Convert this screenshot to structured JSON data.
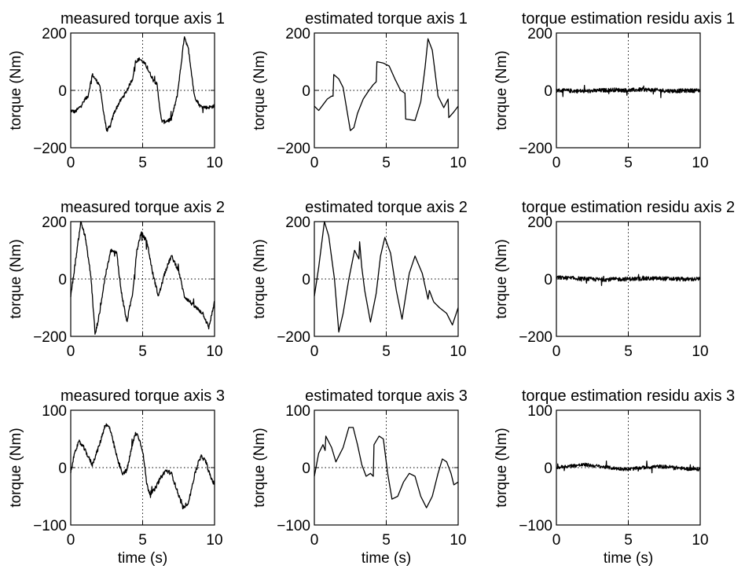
{
  "figure": {
    "background": "#ffffff",
    "line_color": "#000000"
  },
  "chart_data": [
    {
      "type": "line",
      "title": "measured torque axis 1",
      "xlabel": "",
      "ylabel": "torque (Nm)",
      "xlim": [
        0,
        10
      ],
      "ylim": [
        -200,
        200
      ],
      "xticks": [
        "0",
        "5",
        "10"
      ],
      "yticks": [
        "200",
        "0",
        "−200"
      ],
      "grid": "dotted at x=5 and y=0",
      "noise": 6,
      "series": [
        {
          "x": [
            0,
            0.3,
            0.6,
            0.9,
            1.2,
            1.5,
            1.7,
            2.0,
            2.3,
            2.5,
            2.75,
            3.0,
            3.4,
            3.8,
            4.1,
            4.3,
            4.5,
            4.8,
            5.2,
            5.6,
            6.0,
            6.3,
            6.5,
            7.0,
            7.4,
            7.7,
            7.9,
            8.2,
            8.6,
            9.0,
            9.5,
            10
          ],
          "y": [
            -70,
            -75,
            -60,
            -40,
            -20,
            55,
            40,
            20,
            -80,
            -140,
            -125,
            -80,
            -40,
            -10,
            20,
            40,
            100,
            110,
            90,
            50,
            20,
            -105,
            -110,
            -100,
            -20,
            100,
            190,
            140,
            -20,
            -55,
            -60,
            -55
          ]
        }
      ]
    },
    {
      "type": "line",
      "title": "estimated torque axis 1",
      "xlabel": "",
      "ylabel": "torque (Nm)",
      "xlim": [
        0,
        10
      ],
      "ylim": [
        -200,
        200
      ],
      "xticks": [
        "0",
        "5",
        "10"
      ],
      "yticks": [
        "200",
        "0",
        "−200"
      ],
      "grid": "dotted at x=5 and y=0",
      "noise": 0,
      "series": [
        {
          "x": [
            0,
            0.3,
            0.6,
            0.9,
            1.2,
            1.3,
            1.35,
            1.7,
            2.0,
            2.3,
            2.5,
            2.75,
            3.0,
            3.4,
            3.8,
            4.1,
            4.3,
            4.35,
            4.8,
            5.2,
            5.6,
            6.0,
            6.3,
            6.35,
            7.0,
            7.4,
            7.7,
            7.9,
            8.2,
            8.6,
            9.0,
            9.3,
            9.35,
            9.7,
            10
          ],
          "y": [
            -55,
            -70,
            -50,
            -30,
            -20,
            -20,
            55,
            40,
            10,
            -80,
            -140,
            -130,
            -80,
            -30,
            0,
            20,
            30,
            100,
            95,
            85,
            40,
            0,
            -10,
            -100,
            -105,
            -40,
            80,
            180,
            140,
            -20,
            -60,
            -30,
            -95,
            -75,
            -55
          ]
        }
      ]
    },
    {
      "type": "line",
      "title": "torque estimation residu axis 1",
      "xlabel": "",
      "ylabel": "torque (Nm)",
      "xlim": [
        0,
        10
      ],
      "ylim": [
        -200,
        200
      ],
      "xticks": [
        "0",
        "5",
        "10"
      ],
      "yticks": [
        "200",
        "0",
        "−200"
      ],
      "grid": "dotted at x=5 and y=0",
      "noise": 7,
      "series": [
        {
          "x": [
            0,
            2,
            4,
            5,
            6,
            8,
            10
          ],
          "y": [
            0,
            -3,
            2,
            0,
            3,
            -2,
            0
          ]
        }
      ]
    },
    {
      "type": "line",
      "title": "measured torque axis 2",
      "xlabel": "",
      "ylabel": "torque (Nm)",
      "xlim": [
        0,
        10
      ],
      "ylim": [
        -200,
        200
      ],
      "xticks": [
        "0",
        "5",
        "10"
      ],
      "yticks": [
        "200",
        "0",
        "−200"
      ],
      "grid": "dotted at x=5 and y=0",
      "noise": 7,
      "series": [
        {
          "x": [
            0,
            0.3,
            0.7,
            1.0,
            1.4,
            1.7,
            2.0,
            2.4,
            2.8,
            3.2,
            3.5,
            3.9,
            4.3,
            4.6,
            4.9,
            5.3,
            5.7,
            6.1,
            6.6,
            7.0,
            7.5,
            7.9,
            8.3,
            8.7,
            9.2,
            9.6,
            10
          ],
          "y": [
            -60,
            50,
            200,
            150,
            10,
            -195,
            -120,
            10,
            100,
            90,
            -40,
            -150,
            -50,
            100,
            160,
            130,
            20,
            -60,
            30,
            80,
            30,
            -60,
            -80,
            -100,
            -120,
            -170,
            -80
          ]
        }
      ]
    },
    {
      "type": "line",
      "title": "estimated torque axis 2",
      "xlabel": "",
      "ylabel": "torque (Nm)",
      "xlim": [
        0,
        10
      ],
      "ylim": [
        -200,
        200
      ],
      "xticks": [
        "0",
        "5",
        "10"
      ],
      "yticks": [
        "200",
        "0",
        "−200"
      ],
      "grid": "dotted at x=5 and y=0",
      "noise": 0,
      "series": [
        {
          "x": [
            0,
            0.3,
            0.7,
            1.0,
            1.4,
            1.7,
            2.0,
            2.4,
            2.8,
            3.1,
            3.15,
            3.3,
            3.5,
            3.9,
            4.3,
            4.6,
            4.9,
            5.3,
            5.7,
            6.1,
            6.6,
            7.0,
            7.5,
            7.9,
            8.0,
            8.3,
            8.7,
            9.2,
            9.6,
            10
          ],
          "y": [
            -60,
            40,
            200,
            150,
            0,
            -185,
            -120,
            0,
            100,
            70,
            130,
            40,
            -40,
            -150,
            -50,
            80,
            145,
            90,
            -40,
            -140,
            20,
            80,
            20,
            -70,
            -40,
            -80,
            -100,
            -120,
            -160,
            -100
          ]
        }
      ]
    },
    {
      "type": "line",
      "title": "torque estimation residu axis 2",
      "xlabel": "",
      "ylabel": "torque (Nm)",
      "xlim": [
        0,
        10
      ],
      "ylim": [
        -200,
        200
      ],
      "xticks": [
        "0",
        "5",
        "10"
      ],
      "yticks": [
        "200",
        "0",
        "−200"
      ],
      "grid": "dotted at x=5 and y=0",
      "noise": 7,
      "series": [
        {
          "x": [
            0,
            1,
            3,
            5,
            7,
            9,
            10
          ],
          "y": [
            5,
            3,
            -2,
            0,
            2,
            -1,
            0
          ]
        }
      ]
    },
    {
      "type": "line",
      "title": "measured torque axis 3",
      "xlabel": "time (s)",
      "ylabel": "torque (Nm)",
      "xlim": [
        0,
        10
      ],
      "ylim": [
        -100,
        100
      ],
      "xticks": [
        "0",
        "5",
        "10"
      ],
      "yticks": [
        "100",
        "0",
        "−100"
      ],
      "grid": "dotted at x=5 and y=0",
      "noise": 3.5,
      "series": [
        {
          "x": [
            0,
            0.3,
            0.6,
            0.9,
            1.2,
            1.5,
            2.0,
            2.4,
            2.7,
            3.0,
            3.3,
            3.6,
            3.9,
            4.2,
            4.5,
            4.7,
            5.0,
            5.3,
            5.5,
            5.8,
            6.2,
            6.6,
            7.0,
            7.4,
            7.8,
            8.2,
            8.5,
            8.8,
            9.1,
            9.4,
            9.7,
            10
          ],
          "y": [
            -10,
            30,
            45,
            35,
            20,
            5,
            40,
            75,
            70,
            40,
            10,
            -10,
            -5,
            30,
            60,
            55,
            30,
            -30,
            -45,
            -40,
            -20,
            -5,
            -10,
            -40,
            -70,
            -60,
            -25,
            5,
            20,
            10,
            -15,
            -30
          ]
        }
      ]
    },
    {
      "type": "line",
      "title": "estimated torque axis 3",
      "xlabel": "time (s)",
      "ylabel": "torque (Nm)",
      "xlim": [
        0,
        10
      ],
      "ylim": [
        -100,
        100
      ],
      "xticks": [
        "0",
        "5",
        "10"
      ],
      "yticks": [
        "100",
        "0",
        "−100"
      ],
      "grid": "dotted at x=5 and y=0",
      "noise": 0,
      "series": [
        {
          "x": [
            0,
            0.3,
            0.6,
            0.75,
            0.8,
            1.2,
            1.5,
            2.0,
            2.4,
            2.7,
            3.0,
            3.3,
            3.6,
            3.9,
            4.1,
            4.15,
            4.5,
            4.8,
            5.1,
            5.4,
            5.8,
            6.2,
            6.6,
            7.0,
            7.4,
            7.8,
            8.2,
            8.6,
            8.9,
            9.2,
            9.5,
            9.7,
            10
          ],
          "y": [
            -15,
            25,
            40,
            30,
            55,
            35,
            10,
            35,
            70,
            70,
            40,
            5,
            -15,
            -10,
            -15,
            40,
            55,
            50,
            -10,
            -55,
            -50,
            -25,
            -10,
            -15,
            -50,
            -70,
            -50,
            -10,
            15,
            10,
            -10,
            -30,
            -25
          ]
        }
      ]
    },
    {
      "type": "line",
      "title": "torque estimation residu axis 3",
      "xlabel": "time (s)",
      "ylabel": "torque (Nm)",
      "xlim": [
        0,
        10
      ],
      "ylim": [
        -100,
        100
      ],
      "xticks": [
        "0",
        "5",
        "10"
      ],
      "yticks": [
        "100",
        "0",
        "−100"
      ],
      "grid": "dotted at x=5 and y=0",
      "noise": 3,
      "series": [
        {
          "x": [
            0,
            1,
            2,
            3,
            4,
            5,
            6,
            7,
            8,
            9,
            10
          ],
          "y": [
            0,
            3,
            5,
            2,
            -1,
            -3,
            0,
            2,
            1,
            -2,
            -3
          ]
        }
      ]
    }
  ]
}
